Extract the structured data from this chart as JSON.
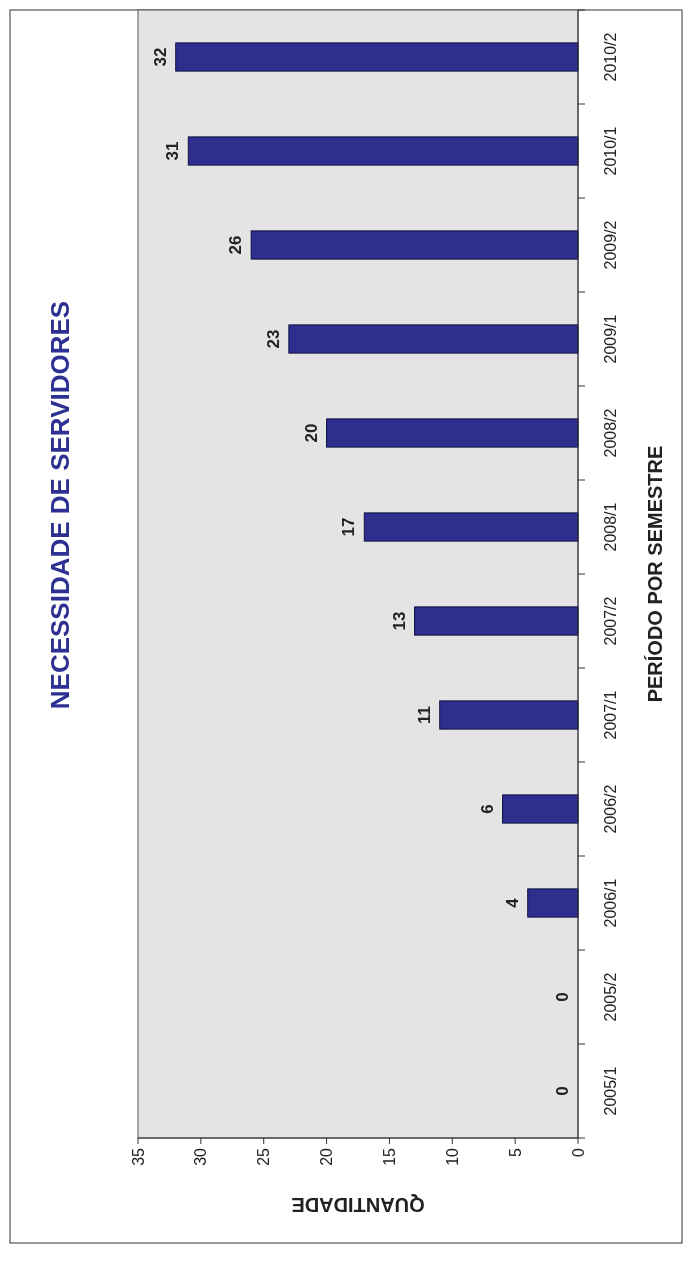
{
  "chart_data": {
    "type": "bar",
    "orientation": "horizontal",
    "title": "NECESSIDADE DE SERVIDORES",
    "xlabel": "QUANTIDADE",
    "ylabel": "PERÍODO POR SEMESTRE",
    "categories": [
      "2010/2",
      "2010/1",
      "2009/2",
      "2009/1",
      "2008/2",
      "2008/1",
      "2007/2",
      "2007/1",
      "2006/2",
      "2006/1",
      "2005/2",
      "2005/1"
    ],
    "values": [
      32,
      31,
      26,
      23,
      20,
      17,
      13,
      11,
      6,
      4,
      0,
      0
    ],
    "color": "#2e2e8e",
    "xlim": [
      35,
      0
    ],
    "xticks": [
      35,
      30,
      25,
      20,
      15,
      10,
      5,
      0
    ],
    "data_labels": true
  }
}
